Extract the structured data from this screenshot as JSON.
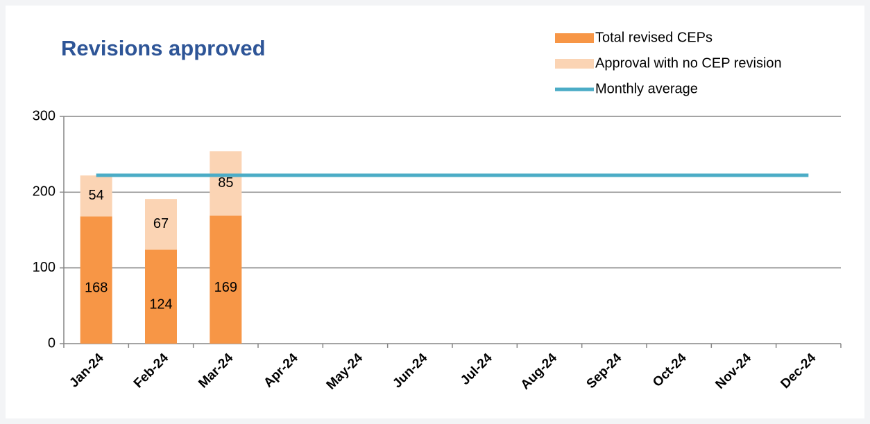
{
  "chart_data": {
    "type": "bar",
    "stacked": true,
    "title": "Revisions approved",
    "categories": [
      "Jan-24",
      "Feb-24",
      "Mar-24",
      "Apr-24",
      "May-24",
      "Jun-24",
      "Jul-24",
      "Aug-24",
      "Sep-24",
      "Oct-24",
      "Nov-24",
      "Dec-24"
    ],
    "series": [
      {
        "name": "Total revised CEPs",
        "type": "bar",
        "color": "#f79646",
        "values": [
          168,
          124,
          169,
          null,
          null,
          null,
          null,
          null,
          null,
          null,
          null,
          null
        ]
      },
      {
        "name": "Approval with no CEP revision",
        "type": "bar",
        "color": "#fbd4b4",
        "values": [
          54,
          67,
          85,
          null,
          null,
          null,
          null,
          null,
          null,
          null,
          null,
          null
        ]
      },
      {
        "name": "Monthly average",
        "type": "line",
        "color": "#4bacc6",
        "values": [
          222.3,
          222.3,
          222.3,
          222.3,
          222.3,
          222.3,
          222.3,
          222.3,
          222.3,
          222.3,
          222.3,
          222.3
        ]
      }
    ],
    "ylim": [
      0,
      300
    ],
    "yticks": [
      0,
      100,
      200,
      300
    ],
    "grid": true,
    "legend": "top-right"
  }
}
